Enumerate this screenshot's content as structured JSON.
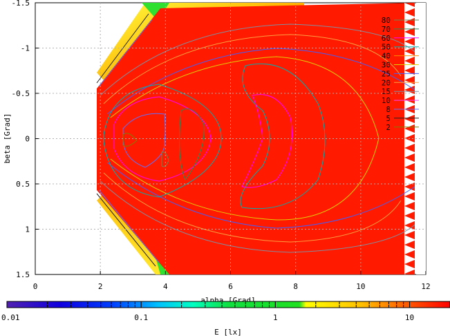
{
  "chart_data": {
    "type": "heatmap",
    "xlabel": "alpha [Grad]",
    "ylabel": "beta [Grad]",
    "xlim": [
      0,
      12
    ],
    "ylim": [
      1.5,
      -1.5
    ],
    "xticks": [
      "0",
      "2",
      "4",
      "6",
      "8",
      "10",
      "12"
    ],
    "yticks": [
      "-1.5",
      "-1",
      "-0.5",
      "0",
      "0.5",
      "1",
      "1.5"
    ],
    "grid": true,
    "colorbar": {
      "label": "E [lx]",
      "scale": "log",
      "range": [
        0.01,
        20
      ],
      "ticks": [
        "0.01",
        "0.1",
        "1",
        "10"
      ]
    },
    "legend": {
      "placement": "top-right",
      "entries": [
        {
          "label": "80",
          "color": "#6e8a52"
        },
        {
          "label": "70",
          "color": "#2e8b57"
        },
        {
          "label": "60",
          "color": "#ff00ff"
        },
        {
          "label": "50",
          "color": "#00b0b0"
        },
        {
          "label": "40",
          "color": "#ff8c00"
        },
        {
          "label": "30",
          "color": "#e0d000"
        },
        {
          "label": "25",
          "color": "#4060ff"
        },
        {
          "label": "20",
          "color": "#ffa040"
        },
        {
          "label": "15",
          "color": "#8090a0"
        },
        {
          "label": "10",
          "color": "#ff40ff"
        },
        {
          "label": "8",
          "color": "#6070ff"
        },
        {
          "label": "5",
          "color": "#202020"
        },
        {
          "label": "2",
          "color": "#808000"
        }
      ]
    }
  }
}
